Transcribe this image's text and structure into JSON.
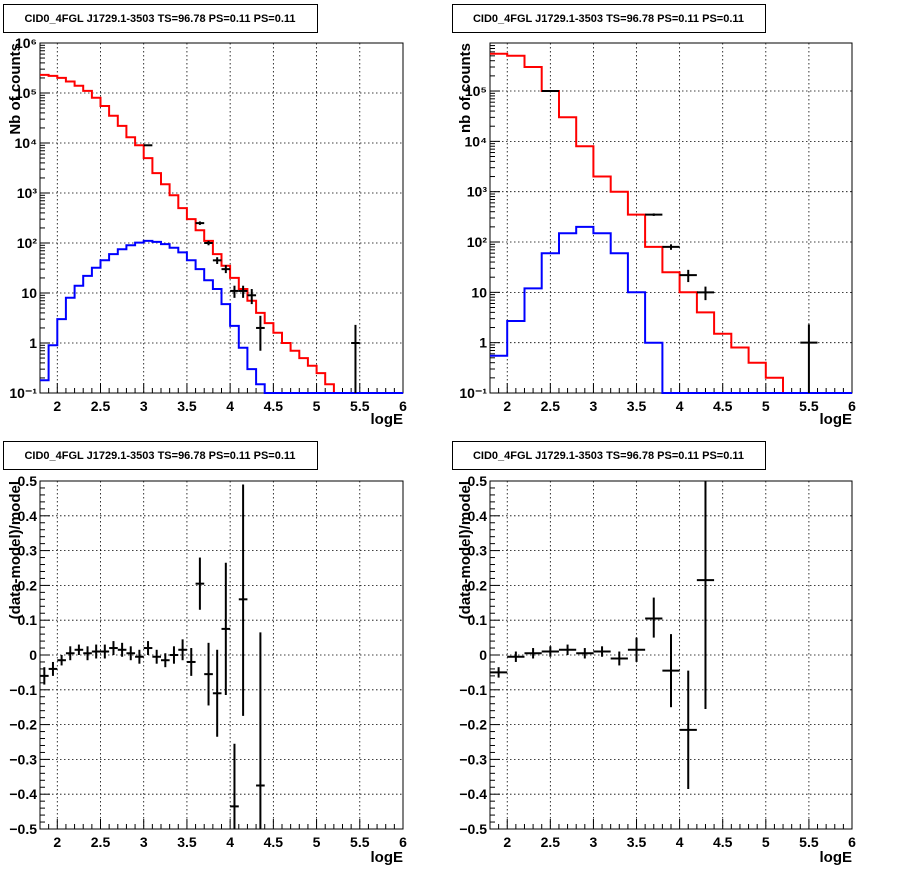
{
  "chart_data": [
    {
      "type": "step",
      "title": "CID0_4FGL J1729.1-3503 TS=96.78 PS=0.11 PS=0.11",
      "xlabel": "logE",
      "ylabel": "Nb of counts",
      "xlim": [
        1.8,
        6.0
      ],
      "ylim": [
        0.1,
        1000000
      ],
      "yscale": "log",
      "grid": true,
      "xticks": [
        2,
        2.5,
        3,
        3.5,
        4,
        4.5,
        5,
        5.5,
        6
      ],
      "xtick_labels": [
        "2",
        "2.5",
        "3",
        "3.5",
        "4",
        "4.5",
        "5",
        "5.5",
        "6"
      ],
      "yticks": [
        0.1,
        1,
        10,
        100,
        1000,
        10000,
        100000,
        1000000
      ],
      "ytick_labels": [
        "10⁻¹",
        "1",
        "10",
        "10²",
        "10³",
        "10⁴",
        "10⁵",
        "10⁶"
      ],
      "bin_edges": [
        1.8,
        1.9,
        2.0,
        2.1,
        2.2,
        2.3,
        2.4,
        2.5,
        2.6,
        2.7,
        2.8,
        2.9,
        3.0,
        3.1,
        3.2,
        3.3,
        3.4,
        3.5,
        3.6,
        3.7,
        3.8,
        3.9,
        4.0,
        4.1,
        4.2,
        4.3,
        4.4,
        4.5,
        4.6,
        4.7,
        4.8,
        4.9,
        5.0,
        5.1,
        5.2,
        5.3,
        5.4,
        5.5,
        5.6,
        5.7,
        5.8,
        5.9,
        6.0
      ],
      "series": [
        {
          "color": "#ff0000",
          "values": [
            230000,
            220000,
            200000,
            170000,
            140000,
            110000,
            80000,
            55000,
            35000,
            22000,
            13000,
            9000,
            5000,
            2500,
            1500,
            900,
            500,
            300,
            180,
            110,
            60,
            35,
            20,
            12,
            7,
            4,
            2.5,
            1.6,
            1.0,
            0.7,
            0.5,
            0.35,
            0.25,
            0.15,
            0.1,
            0.1,
            0.1,
            0.1,
            0.1,
            0.1,
            0.1,
            0.1
          ]
        },
        {
          "color": "#0000ff",
          "values": [
            0.18,
            0.9,
            3,
            8,
            14,
            22,
            32,
            45,
            60,
            75,
            90,
            102,
            110,
            105,
            95,
            80,
            65,
            45,
            30,
            18,
            12,
            6,
            2.2,
            0.8,
            0.3,
            0.15,
            0.1,
            0.1,
            0.1,
            0.1,
            0.1,
            0.1,
            0.1,
            0.1,
            0.1,
            0.1,
            0.1,
            0.1,
            0.1,
            0.1,
            0.1,
            0.1
          ]
        }
      ],
      "points": [
        {
          "x": 3.05,
          "y": 9000,
          "xerr": 0.05,
          "ylo": 8800,
          "yhi": 9200
        },
        {
          "x": 3.65,
          "y": 250,
          "xerr": 0.05,
          "ylo": 230,
          "yhi": 270
        },
        {
          "x": 3.75,
          "y": 100,
          "xerr": 0.05,
          "ylo": 90,
          "yhi": 110
        },
        {
          "x": 3.85,
          "y": 45,
          "xerr": 0.05,
          "ylo": 38,
          "yhi": 52
        },
        {
          "x": 3.95,
          "y": 30,
          "xerr": 0.05,
          "ylo": 25,
          "yhi": 36
        },
        {
          "x": 4.05,
          "y": 11,
          "xerr": 0.05,
          "ylo": 8,
          "yhi": 14
        },
        {
          "x": 4.15,
          "y": 11,
          "xerr": 0.05,
          "ylo": 8,
          "yhi": 14
        },
        {
          "x": 4.25,
          "y": 9,
          "xerr": 0.05,
          "ylo": 6,
          "yhi": 12
        },
        {
          "x": 4.35,
          "y": 2,
          "xerr": 0.05,
          "ylo": 0.7,
          "yhi": 3.5
        },
        {
          "x": 5.45,
          "y": 1,
          "xerr": 0.05,
          "ylo": 0.1,
          "yhi": 2.3
        }
      ]
    },
    {
      "type": "step",
      "title": "CID0_4FGL J1729.1-3503 TS=96.78 PS=0.11 PS=0.11",
      "xlabel": "logE",
      "ylabel": "nb of counts",
      "xlim": [
        1.8,
        6.0
      ],
      "ylim": [
        0.1,
        900000
      ],
      "yscale": "log",
      "grid": true,
      "xticks": [
        2,
        2.5,
        3,
        3.5,
        4,
        4.5,
        5,
        5.5,
        6
      ],
      "xtick_labels": [
        "2",
        "2.5",
        "3",
        "3.5",
        "4",
        "4.5",
        "5",
        "5.5",
        "6"
      ],
      "yticks": [
        0.1,
        1,
        10,
        100,
        1000,
        10000,
        100000
      ],
      "ytick_labels": [
        "10⁻¹",
        "1",
        "10",
        "10²",
        "10³",
        "10⁴",
        "10⁵"
      ],
      "bin_edges": [
        1.8,
        2.0,
        2.2,
        2.4,
        2.6,
        2.8,
        3.0,
        3.2,
        3.4,
        3.6,
        3.8,
        4.0,
        4.2,
        4.4,
        4.6,
        4.8,
        5.0,
        5.2,
        5.4,
        5.6,
        5.8,
        6.0
      ],
      "series": [
        {
          "color": "#ff0000",
          "values": [
            550000,
            500000,
            300000,
            100000,
            30000,
            8000,
            2000,
            1000,
            350,
            80,
            25,
            10,
            4,
            1.5,
            0.8,
            0.4,
            0.2,
            0.1,
            0.1,
            0.1,
            0.1
          ]
        },
        {
          "color": "#0000ff",
          "values": [
            0.55,
            2.7,
            12,
            60,
            150,
            200,
            150,
            60,
            10,
            1,
            0.1,
            0.1,
            0.1,
            0.1,
            0.1,
            0.1,
            0.1,
            0.1,
            0.1,
            0.1,
            0.1
          ]
        }
      ],
      "points": [
        {
          "x": 2.5,
          "y": 100000,
          "xerr": 0.1,
          "ylo": 98000,
          "yhi": 102000
        },
        {
          "x": 3.7,
          "y": 350,
          "xerr": 0.1,
          "ylo": 330,
          "yhi": 370
        },
        {
          "x": 3.9,
          "y": 80,
          "xerr": 0.1,
          "ylo": 70,
          "yhi": 90
        },
        {
          "x": 4.1,
          "y": 22,
          "xerr": 0.1,
          "ylo": 16,
          "yhi": 28
        },
        {
          "x": 4.3,
          "y": 10,
          "xerr": 0.1,
          "ylo": 7,
          "yhi": 13
        },
        {
          "x": 5.5,
          "y": 1,
          "xerr": 0.1,
          "ylo": 0.1,
          "yhi": 2.3
        }
      ]
    },
    {
      "type": "scatter",
      "title": "CID0_4FGL J1729.1-3503 TS=96.78 PS=0.11 PS=0.11",
      "xlabel": "logE",
      "ylabel": "(data-model)/model",
      "xlim": [
        1.8,
        6.0
      ],
      "ylim": [
        -0.5,
        0.5
      ],
      "grid": true,
      "xticks": [
        2,
        2.5,
        3,
        3.5,
        4,
        4.5,
        5,
        5.5,
        6
      ],
      "xtick_labels": [
        "2",
        "2.5",
        "3",
        "3.5",
        "4",
        "4.5",
        "5",
        "5.5",
        "6"
      ],
      "yticks": [
        -0.5,
        -0.4,
        -0.3,
        -0.2,
        -0.1,
        0,
        0.1,
        0.2,
        0.3,
        0.4,
        0.5
      ],
      "ytick_labels": [
        "−0.5",
        "−0.4",
        "−0.3",
        "−0.2",
        "−0.1",
        "0",
        "0.1",
        "0.2",
        "0.3",
        "0.4",
        "0.5"
      ],
      "points": [
        {
          "x": 1.85,
          "y": -0.06,
          "xerr": 0.05,
          "ylo": -0.085,
          "yhi": -0.035
        },
        {
          "x": 1.95,
          "y": -0.04,
          "xerr": 0.05,
          "ylo": -0.06,
          "yhi": -0.02
        },
        {
          "x": 2.05,
          "y": -0.015,
          "xerr": 0.05,
          "ylo": -0.03,
          "yhi": 0.0
        },
        {
          "x": 2.15,
          "y": 0.005,
          "xerr": 0.05,
          "ylo": -0.015,
          "yhi": 0.025
        },
        {
          "x": 2.25,
          "y": 0.015,
          "xerr": 0.05,
          "ylo": 0.0,
          "yhi": 0.03
        },
        {
          "x": 2.35,
          "y": 0.005,
          "xerr": 0.05,
          "ylo": -0.015,
          "yhi": 0.025
        },
        {
          "x": 2.45,
          "y": 0.01,
          "xerr": 0.05,
          "ylo": -0.01,
          "yhi": 0.03
        },
        {
          "x": 2.55,
          "y": 0.01,
          "xerr": 0.05,
          "ylo": -0.01,
          "yhi": 0.03
        },
        {
          "x": 2.65,
          "y": 0.02,
          "xerr": 0.05,
          "ylo": 0.0,
          "yhi": 0.04
        },
        {
          "x": 2.75,
          "y": 0.015,
          "xerr": 0.05,
          "ylo": -0.005,
          "yhi": 0.035
        },
        {
          "x": 2.85,
          "y": 0.005,
          "xerr": 0.05,
          "ylo": -0.015,
          "yhi": 0.025
        },
        {
          "x": 2.95,
          "y": -0.005,
          "xerr": 0.05,
          "ylo": -0.025,
          "yhi": 0.015
        },
        {
          "x": 3.05,
          "y": 0.02,
          "xerr": 0.05,
          "ylo": 0.0,
          "yhi": 0.04
        },
        {
          "x": 3.15,
          "y": -0.005,
          "xerr": 0.05,
          "ylo": -0.025,
          "yhi": 0.015
        },
        {
          "x": 3.25,
          "y": -0.015,
          "xerr": 0.05,
          "ylo": -0.035,
          "yhi": 0.005
        },
        {
          "x": 3.35,
          "y": 0.0,
          "xerr": 0.05,
          "ylo": -0.025,
          "yhi": 0.025
        },
        {
          "x": 3.45,
          "y": 0.015,
          "xerr": 0.05,
          "ylo": -0.015,
          "yhi": 0.045
        },
        {
          "x": 3.55,
          "y": -0.02,
          "xerr": 0.05,
          "ylo": -0.06,
          "yhi": 0.02
        },
        {
          "x": 3.65,
          "y": 0.205,
          "xerr": 0.05,
          "ylo": 0.13,
          "yhi": 0.28
        },
        {
          "x": 3.75,
          "y": -0.055,
          "xerr": 0.05,
          "ylo": -0.145,
          "yhi": 0.035
        },
        {
          "x": 3.85,
          "y": -0.11,
          "xerr": 0.05,
          "ylo": -0.235,
          "yhi": 0.015
        },
        {
          "x": 3.95,
          "y": 0.075,
          "xerr": 0.05,
          "ylo": -0.115,
          "yhi": 0.265
        },
        {
          "x": 4.05,
          "y": -0.435,
          "xerr": 0.05,
          "ylo": -0.5,
          "yhi": -0.255
        },
        {
          "x": 4.15,
          "y": 0.16,
          "xerr": 0.05,
          "ylo": -0.175,
          "yhi": 0.49
        },
        {
          "x": 4.35,
          "y": -0.375,
          "xerr": 0.05,
          "ylo": -0.5,
          "yhi": 0.065
        }
      ]
    },
    {
      "type": "scatter",
      "title": "CID0_4FGL J1729.1-3503 TS=96.78 PS=0.11 PS=0.11",
      "xlabel": "logE",
      "ylabel": "(data-model)/model",
      "xlim": [
        1.8,
        6.0
      ],
      "ylim": [
        -0.5,
        0.5
      ],
      "grid": true,
      "xticks": [
        2,
        2.5,
        3,
        3.5,
        4,
        4.5,
        5,
        5.5,
        6
      ],
      "xtick_labels": [
        "2",
        "2.5",
        "3",
        "3.5",
        "4",
        "4.5",
        "5",
        "5.5",
        "6"
      ],
      "yticks": [
        -0.5,
        -0.4,
        -0.3,
        -0.2,
        -0.1,
        0,
        0.1,
        0.2,
        0.3,
        0.4,
        0.5
      ],
      "ytick_labels": [
        "−0.5",
        "−0.4",
        "−0.3",
        "−0.2",
        "−0.1",
        "0",
        "0.1",
        "0.2",
        "0.3",
        "0.4",
        "0.5"
      ],
      "points": [
        {
          "x": 1.9,
          "y": -0.05,
          "xerr": 0.1,
          "ylo": -0.065,
          "yhi": -0.035
        },
        {
          "x": 2.1,
          "y": -0.005,
          "xerr": 0.1,
          "ylo": -0.02,
          "yhi": 0.01
        },
        {
          "x": 2.3,
          "y": 0.005,
          "xerr": 0.1,
          "ylo": -0.01,
          "yhi": 0.02
        },
        {
          "x": 2.5,
          "y": 0.01,
          "xerr": 0.1,
          "ylo": -0.005,
          "yhi": 0.025
        },
        {
          "x": 2.7,
          "y": 0.015,
          "xerr": 0.1,
          "ylo": 0.0,
          "yhi": 0.03
        },
        {
          "x": 2.9,
          "y": 0.005,
          "xerr": 0.1,
          "ylo": -0.01,
          "yhi": 0.02
        },
        {
          "x": 3.1,
          "y": 0.01,
          "xerr": 0.1,
          "ylo": -0.005,
          "yhi": 0.025
        },
        {
          "x": 3.3,
          "y": -0.01,
          "xerr": 0.1,
          "ylo": -0.03,
          "yhi": 0.01
        },
        {
          "x": 3.5,
          "y": 0.015,
          "xerr": 0.1,
          "ylo": -0.02,
          "yhi": 0.05
        },
        {
          "x": 3.7,
          "y": 0.105,
          "xerr": 0.1,
          "ylo": 0.05,
          "yhi": 0.165
        },
        {
          "x": 3.9,
          "y": -0.045,
          "xerr": 0.1,
          "ylo": -0.15,
          "yhi": 0.06
        },
        {
          "x": 4.1,
          "y": -0.215,
          "xerr": 0.1,
          "ylo": -0.385,
          "yhi": -0.045
        },
        {
          "x": 4.3,
          "y": 0.215,
          "xerr": 0.1,
          "ylo": -0.155,
          "yhi": 0.5
        }
      ]
    }
  ]
}
